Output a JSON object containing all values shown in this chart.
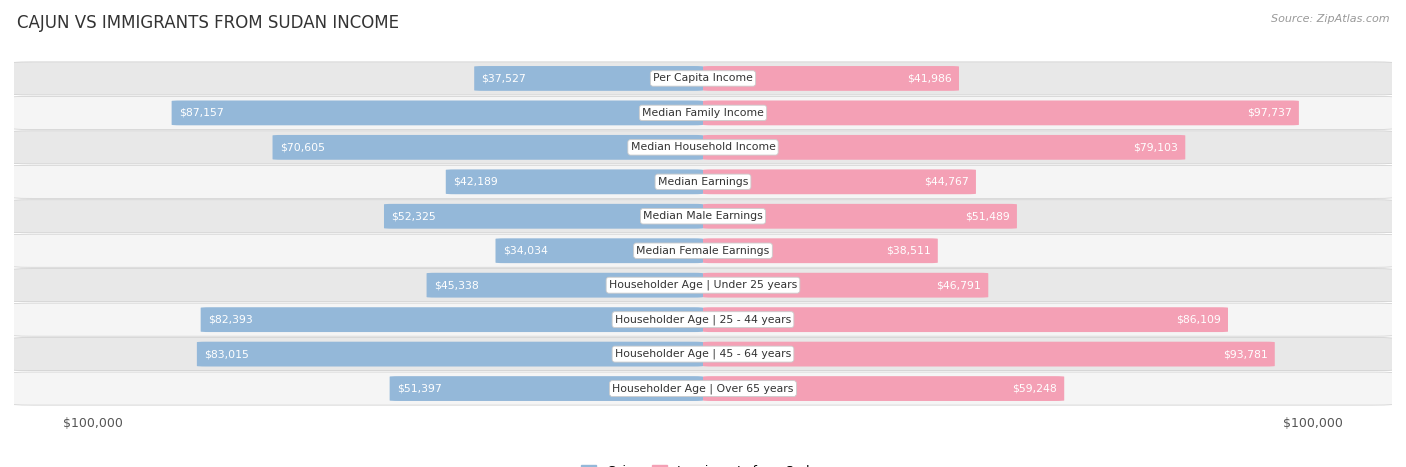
{
  "title": "CAJUN VS IMMIGRANTS FROM SUDAN INCOME",
  "source": "Source: ZipAtlas.com",
  "categories": [
    "Per Capita Income",
    "Median Family Income",
    "Median Household Income",
    "Median Earnings",
    "Median Male Earnings",
    "Median Female Earnings",
    "Householder Age | Under 25 years",
    "Householder Age | 25 - 44 years",
    "Householder Age | 45 - 64 years",
    "Householder Age | Over 65 years"
  ],
  "cajun_values": [
    37527,
    87157,
    70605,
    42189,
    52325,
    34034,
    45338,
    82393,
    83015,
    51397
  ],
  "sudan_values": [
    41986,
    97737,
    79103,
    44767,
    51489,
    38511,
    46791,
    86109,
    93781,
    59248
  ],
  "cajun_color": "#94b8d9",
  "sudan_color": "#f4a0b5",
  "cajun_label": "Cajun",
  "sudan_label": "Immigrants from Sudan",
  "max_value": 100000,
  "x_tick_label_left": "$100,000",
  "x_tick_label_right": "$100,000",
  "row_bg_even": "#e8e8e8",
  "row_bg_odd": "#f5f5f5",
  "bar_height": 0.72,
  "label_color_outside": "#444444",
  "label_color_inside": "#ffffff",
  "category_box_color": "#ffffff",
  "category_text_color": "#333333",
  "title_color": "#333333",
  "source_color": "#999999",
  "inside_threshold": 0.2
}
